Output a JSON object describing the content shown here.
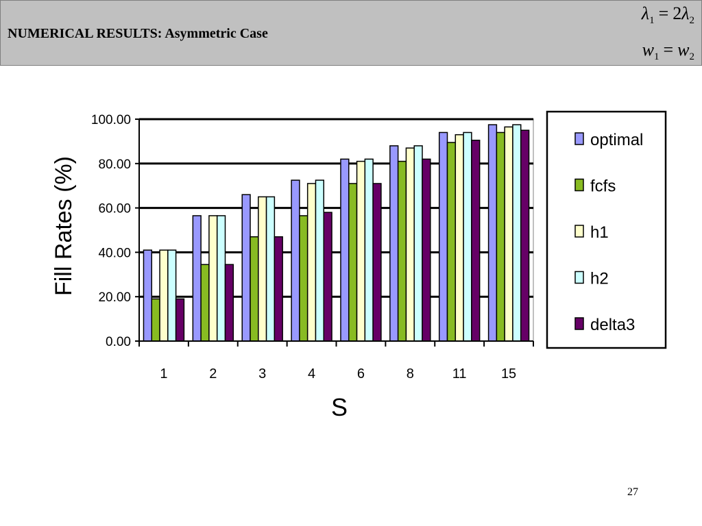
{
  "slide": {
    "title": "NUMERICAL RESULTS: Asymmetric Case",
    "formula_1": {
      "lhs_symbol": "λ",
      "lhs_sub": "1",
      "op": "=",
      "coef": "2",
      "rhs_symbol": "λ",
      "rhs_sub": "2"
    },
    "formula_2": {
      "lhs_symbol": "w",
      "lhs_sub": "1",
      "op": "=",
      "rhs_symbol": "w",
      "rhs_sub": "2"
    },
    "page_number": "27"
  },
  "chart_data": {
    "type": "bar",
    "title": "",
    "xlabel": "S",
    "ylabel": "Fill Rates (%)",
    "categories": [
      "1",
      "2",
      "3",
      "4",
      "6",
      "8",
      "11",
      "15"
    ],
    "ylim": [
      0,
      100
    ],
    "yticks": [
      "0.00",
      "20.00",
      "40.00",
      "60.00",
      "80.00",
      "100.00"
    ],
    "grid": "horizontal",
    "legend_position": "right",
    "series": [
      {
        "name": "optimal",
        "color": "#9999ff",
        "values": [
          41,
          56.5,
          66,
          72.5,
          82,
          88,
          94,
          97.5
        ]
      },
      {
        "name": "fcfs",
        "color": "#88bb22",
        "values": [
          19,
          34.5,
          47,
          56.5,
          71,
          81,
          89.5,
          94
        ]
      },
      {
        "name": "h1",
        "color": "#ffffcc",
        "values": [
          41,
          56.5,
          65,
          71,
          81,
          87,
          93,
          96.5
        ]
      },
      {
        "name": "h2",
        "color": "#ccffff",
        "values": [
          41,
          56.5,
          65,
          72.5,
          82,
          88,
          94,
          97.5
        ]
      },
      {
        "name": "delta3",
        "color": "#660066",
        "values": [
          19,
          34.5,
          47,
          58,
          71,
          82,
          90.5,
          95
        ]
      }
    ]
  }
}
